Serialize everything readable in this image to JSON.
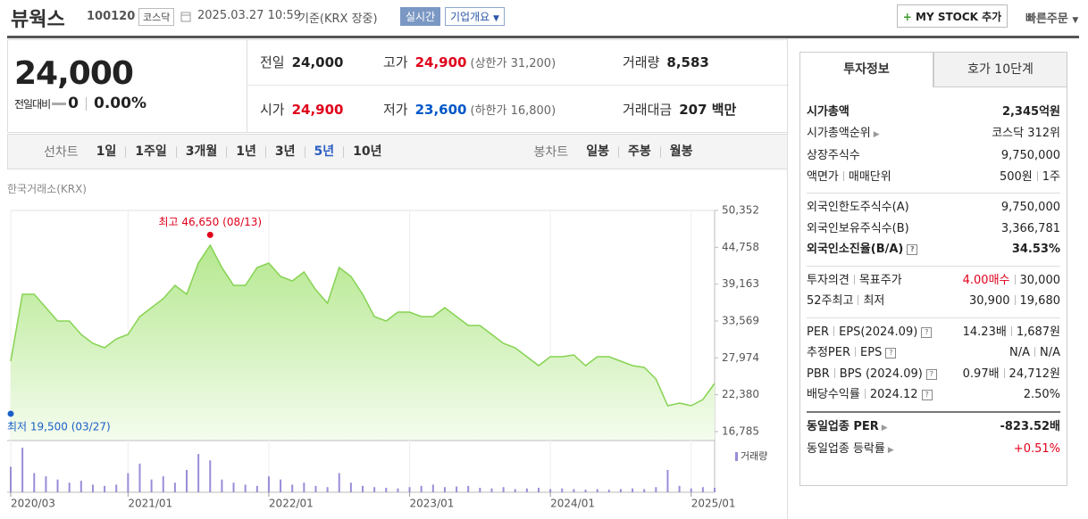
{
  "header": {
    "name": "뷰웍스",
    "code": "100120",
    "market": "코스닥",
    "datetime": "2025.03.27 10:59",
    "basis": "기준(KRX 장중)",
    "realtime": "실시간",
    "company_info": "기업개요",
    "my_stock": "MY STOCK 추가",
    "quick_order": "빠른주문"
  },
  "quote": {
    "price": "24,000",
    "change_label": "전일대비",
    "change": "0",
    "change_rate": "0.00%",
    "items": [
      {
        "label": "전일",
        "value": "24,000"
      },
      {
        "label": "고가",
        "value": "24,900",
        "note": "(상한가 31,200)",
        "color": "#e0001b"
      },
      {
        "label": "거래량",
        "value": "8,583"
      },
      {
        "label": "시가",
        "value": "24,900",
        "color": "#e0001b"
      },
      {
        "label": "저가",
        "value": "23,600",
        "note": "(하한가 16,800)",
        "color": "#0057c8"
      },
      {
        "label": "거래대금",
        "value": "207 백만"
      }
    ]
  },
  "chart_tabs": {
    "line_label": "선차트",
    "line_periods": [
      "1일",
      "1주일",
      "3개월",
      "1년",
      "3년",
      "5년",
      "10년"
    ],
    "active": "5년",
    "candle_label": "봉차트",
    "candle_periods": [
      "일봉",
      "주봉",
      "월봉"
    ]
  },
  "chart_data": {
    "type": "area",
    "source": "한국거래소(KRX)",
    "color": "#86d352",
    "grid": true,
    "x": [
      "2020/03",
      "2020/04",
      "2020/05",
      "2020/06",
      "2020/07",
      "2020/08",
      "2020/09",
      "2020/10",
      "2020/11",
      "2020/12",
      "2021/01",
      "2021/02",
      "2021/03",
      "2021/04",
      "2021/05",
      "2021/06",
      "2021/07",
      "2021/08",
      "2021/09",
      "2021/10",
      "2021/11",
      "2021/12",
      "2022/01",
      "2022/02",
      "2022/03",
      "2022/04",
      "2022/05",
      "2022/06",
      "2022/07",
      "2022/08",
      "2022/09",
      "2022/10",
      "2022/11",
      "2022/12",
      "2023/01",
      "2023/02",
      "2023/03",
      "2023/04",
      "2023/05",
      "2023/06",
      "2023/07",
      "2023/08",
      "2023/09",
      "2023/10",
      "2023/11",
      "2023/12",
      "2024/01",
      "2024/02",
      "2024/03",
      "2024/04",
      "2024/05",
      "2024/06",
      "2024/07",
      "2024/08",
      "2024/09",
      "2024/10",
      "2024/11",
      "2024/12",
      "2025/01",
      "2025/02",
      "2025/03"
    ],
    "values": [
      27480,
      37630,
      37630,
      35600,
      33570,
      33570,
      31540,
      30190,
      29510,
      30860,
      31540,
      34240,
      35600,
      36950,
      38980,
      37630,
      42360,
      45070,
      41690,
      38980,
      38980,
      41690,
      42360,
      40340,
      39660,
      41010,
      38300,
      36280,
      41690,
      40340,
      37630,
      34240,
      33570,
      34920,
      34920,
      34240,
      34240,
      35600,
      34240,
      32890,
      32890,
      31540,
      30190,
      29510,
      28160,
      26800,
      28160,
      28160,
      28430,
      26800,
      28160,
      28160,
      27480,
      26800,
      26530,
      24770,
      20710,
      21120,
      20710,
      21660,
      24100
    ],
    "xlim": [
      "2020/03",
      "2025/03"
    ],
    "xticks": [
      "2020/03",
      "2021/01",
      "2022/01",
      "2023/01",
      "2024/01",
      "2025/01"
    ],
    "ylim": [
      16785,
      50352
    ],
    "yticks": [
      {
        "value": 16785,
        "label": "16,785"
      },
      {
        "value": 22380,
        "label": "22,380"
      },
      {
        "value": 27974,
        "label": "27,974"
      },
      {
        "value": 33569,
        "label": "33,569"
      },
      {
        "value": 39163,
        "label": "39,163"
      },
      {
        "value": 44758,
        "label": "44,758"
      },
      {
        "value": 50352,
        "label": "50,352"
      }
    ],
    "annotations": [
      {
        "text": "최고 46,650 (08/13)",
        "x": "2021/08",
        "y": 46650,
        "color": "#e0001b"
      },
      {
        "text": "최저 19,500 (03/27)",
        "x": "2020/03",
        "y": 19500,
        "color": "#1a5fc8"
      }
    ],
    "volume": {
      "name": "거래량",
      "color": "#9b8cd8",
      "values": [
        40,
        70,
        30,
        25,
        20,
        15,
        18,
        12,
        10,
        12,
        30,
        45,
        20,
        25,
        15,
        35,
        60,
        50,
        20,
        15,
        12,
        10,
        25,
        20,
        12,
        15,
        10,
        8,
        30,
        15,
        10,
        8,
        7,
        6,
        8,
        10,
        12,
        8,
        9,
        10,
        7,
        6,
        8,
        5,
        6,
        7,
        5,
        6,
        5,
        4,
        5,
        4,
        5,
        6,
        5,
        8,
        35,
        10,
        6,
        8,
        7
      ]
    }
  },
  "side": {
    "tabs": [
      "투자정보",
      "호가 10단계"
    ],
    "sections": [
      [
        {
          "label": [
            "시가총액"
          ],
          "value": [
            {
              "text": "2,345억원"
            }
          ],
          "bold": true
        },
        {
          "label": [
            "시가총액순위"
          ],
          "arrow": true,
          "value": [
            {
              "text": "코스닥 312위"
            }
          ]
        },
        {
          "label": [
            "상장주식수"
          ],
          "value": [
            {
              "text": "9,750,000"
            }
          ]
        },
        {
          "label": [
            "액면가",
            "매매단위"
          ],
          "value": [
            {
              "text": "500원"
            },
            {
              "text": "1주"
            }
          ]
        }
      ],
      [
        {
          "label": [
            "외국인한도주식수(A)"
          ],
          "value": [
            {
              "text": "9,750,000"
            }
          ]
        },
        {
          "label": [
            "외국인보유주식수(B)"
          ],
          "value": [
            {
              "text": "3,366,781"
            }
          ]
        },
        {
          "label": [
            "외국인소진율(B/A)"
          ],
          "help": true,
          "value": [
            {
              "text": "34.53%"
            }
          ],
          "bold": true
        }
      ],
      [
        {
          "label": [
            "투자의견",
            "목표주가"
          ],
          "value": [
            {
              "text": "4.00매수",
              "color": "#e0001b"
            },
            {
              "text": "30,000"
            }
          ]
        },
        {
          "label": [
            "52주최고",
            "최저"
          ],
          "value": [
            {
              "text": "30,900"
            },
            {
              "text": "19,680"
            }
          ]
        }
      ],
      [
        {
          "label": [
            "PER",
            "EPS(2024.09)"
          ],
          "help": true,
          "value": [
            {
              "text": "14.23배"
            },
            {
              "text": "1,687원"
            }
          ]
        },
        {
          "label": [
            "추정PER",
            "EPS"
          ],
          "help": true,
          "value": [
            {
              "text": "N/A"
            },
            {
              "text": "N/A"
            }
          ]
        },
        {
          "label": [
            "PBR",
            "BPS (2024.09)"
          ],
          "help": true,
          "value": [
            {
              "text": "0.97배"
            },
            {
              "text": "24,712원"
            }
          ]
        },
        {
          "label": [
            "배당수익률",
            "2024.12"
          ],
          "help": true,
          "value": [
            {
              "text": "2.50%"
            }
          ]
        }
      ],
      [
        {
          "label": [
            "동일업종 PER"
          ],
          "arrow": true,
          "value": [
            {
              "text": "-823.52배"
            }
          ],
          "bold": true
        },
        {
          "label": [
            "동일업종 등락률"
          ],
          "arrow": true,
          "value": [
            {
              "text": "+0.51%",
              "color": "#e0001b"
            }
          ]
        }
      ]
    ]
  }
}
